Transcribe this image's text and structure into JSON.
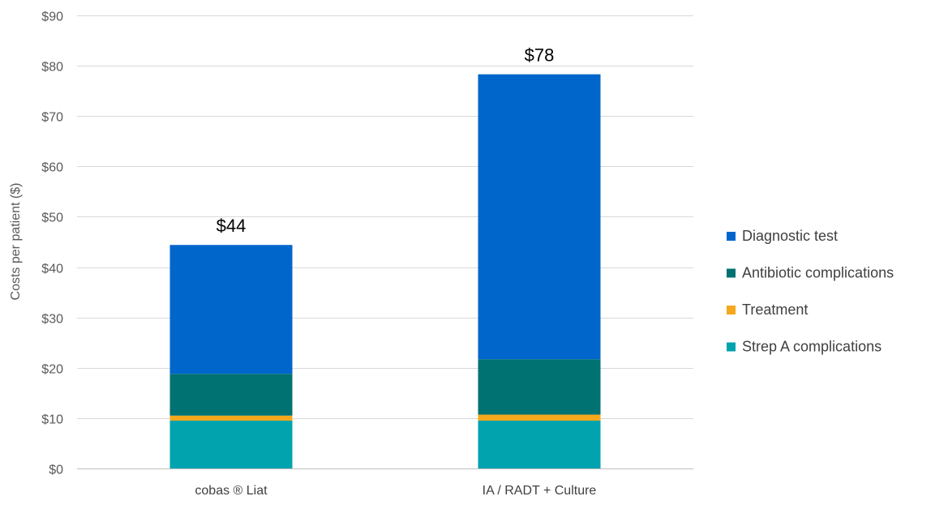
{
  "chart_data": {
    "type": "bar",
    "stacked": true,
    "title": "",
    "xlabel": "",
    "ylabel": "Costs per patient ($)",
    "ylim": [
      0,
      90
    ],
    "y_ticks": [
      "$0",
      "$10",
      "$20",
      "$30",
      "$40",
      "$50",
      "$60",
      "$70",
      "$80",
      "$90"
    ],
    "grid": true,
    "legend_position": "right",
    "categories": [
      "cobas ® Liat",
      "IA / RADT + Culture"
    ],
    "series": [
      {
        "name": "Strep A complications",
        "color": "#00A3AE",
        "values": [
          9.5,
          9.5
        ]
      },
      {
        "name": "Treatment",
        "color": "#F5A81C",
        "values": [
          1.0,
          1.2
        ]
      },
      {
        "name": "Antibiotic complications",
        "color": "#007272",
        "values": [
          8.3,
          11.0
        ]
      },
      {
        "name": "Diagnostic test",
        "color": "#0066CC",
        "values": [
          25.6,
          56.6
        ]
      }
    ],
    "totals": [
      "$44",
      "$78"
    ],
    "legend_order": [
      "Diagnostic test",
      "Antibiotic complications",
      "Treatment",
      "Strep A complications"
    ]
  }
}
